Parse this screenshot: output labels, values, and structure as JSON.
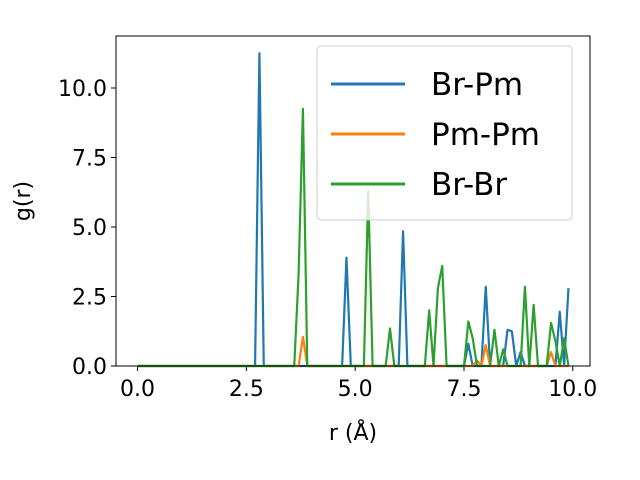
{
  "chart_data": {
    "type": "line",
    "x_label": "r (Å)",
    "y_label": "g(r)",
    "x": [
      0,
      0.1,
      0.2,
      0.3,
      0.4,
      0.5,
      0.6,
      0.7,
      0.8,
      0.9,
      1,
      1.1,
      1.2,
      1.3,
      1.4,
      1.5,
      1.6,
      1.7,
      1.8,
      1.9,
      2,
      2.1,
      2.2,
      2.3,
      2.4,
      2.5,
      2.6,
      2.7,
      2.8,
      2.9,
      3,
      3.1,
      3.2,
      3.3,
      3.4,
      3.5,
      3.6,
      3.7,
      3.8,
      3.9,
      4,
      4.1,
      4.2,
      4.3,
      4.4,
      4.5,
      4.6,
      4.7,
      4.8,
      4.9,
      5,
      5.1,
      5.2,
      5.3,
      5.4,
      5.5,
      5.6,
      5.7,
      5.8,
      5.9,
      6,
      6.1,
      6.2,
      6.3,
      6.4,
      6.5,
      6.6,
      6.7,
      6.8,
      6.9,
      7,
      7.1,
      7.2,
      7.3,
      7.4,
      7.5,
      7.6,
      7.7,
      7.8,
      7.9,
      8,
      8.1,
      8.2,
      8.3,
      8.4,
      8.5,
      8.6,
      8.7,
      8.8,
      8.9,
      9,
      9.1,
      9.2,
      9.3,
      9.4,
      9.5,
      9.6,
      9.7,
      9.8,
      9.9
    ],
    "series": [
      {
        "name": "Br-Pm",
        "color": "#1f77b4",
        "values": [
          0,
          0,
          0,
          0,
          0,
          0,
          0,
          0,
          0,
          0,
          0,
          0,
          0,
          0,
          0,
          0,
          0,
          0,
          0,
          0,
          0,
          0,
          0,
          0,
          0,
          0,
          0,
          0,
          11.25,
          0,
          0,
          0,
          0,
          0,
          0,
          0,
          0,
          0,
          0,
          0,
          0,
          0,
          0,
          0,
          0,
          0,
          0,
          0,
          3.9,
          0,
          0,
          0,
          0,
          0,
          0,
          0,
          0,
          0,
          0,
          0,
          0,
          4.85,
          0,
          0,
          0,
          0,
          0,
          0,
          0,
          0,
          0,
          0,
          0,
          0,
          0,
          0,
          0.8,
          0,
          0,
          0,
          2.85,
          0,
          0,
          0,
          0,
          1.3,
          1.25,
          0,
          0.5,
          0,
          0,
          0,
          0,
          0,
          0,
          0,
          0,
          1.95,
          0,
          2.8
        ]
      },
      {
        "name": "Pm-Pm",
        "color": "#ff7f0e",
        "values": [
          0,
          0,
          0,
          0,
          0,
          0,
          0,
          0,
          0,
          0,
          0,
          0,
          0,
          0,
          0,
          0,
          0,
          0,
          0,
          0,
          0,
          0,
          0,
          0,
          0,
          0,
          0,
          0,
          0,
          0,
          0,
          0,
          0,
          0,
          0,
          0,
          0,
          0,
          1.05,
          0,
          0,
          0,
          0,
          0,
          0,
          0,
          0,
          0,
          0,
          0,
          0,
          0,
          0,
          0,
          0,
          0,
          0,
          0,
          0,
          0,
          0,
          0,
          0,
          0,
          0,
          0,
          0,
          0,
          0,
          0,
          0,
          0,
          0,
          0,
          0,
          0,
          0,
          0,
          0.2,
          0,
          0.75,
          0,
          0,
          0,
          0,
          0,
          0,
          0,
          0,
          0,
          0,
          0,
          0,
          0,
          0,
          0.5,
          0,
          0,
          0,
          0
        ]
      },
      {
        "name": "Br-Br",
        "color": "#2ca02c",
        "values": [
          0,
          0,
          0,
          0,
          0,
          0,
          0,
          0,
          0,
          0,
          0,
          0,
          0,
          0,
          0,
          0,
          0,
          0,
          0,
          0,
          0,
          0,
          0,
          0,
          0,
          0,
          0,
          0,
          0,
          0,
          0,
          0,
          0,
          0,
          0,
          0,
          0,
          3.3,
          9.25,
          0,
          0,
          0,
          0,
          0,
          0,
          0,
          0,
          0,
          0,
          0,
          0,
          0,
          0,
          6.3,
          0,
          0,
          0,
          0,
          1.35,
          0,
          0,
          0,
          0,
          0,
          0,
          0,
          0,
          2,
          0,
          2.8,
          3.6,
          0,
          0,
          0,
          0,
          0,
          1.6,
          1,
          0,
          0,
          0,
          0,
          1.3,
          0,
          0.6,
          0,
          0,
          0,
          0,
          2.85,
          0,
          2.2,
          0,
          0,
          0,
          1.55,
          0.9,
          0,
          1,
          0
        ]
      }
    ],
    "xlim": [
      -0.495,
      10.395
    ],
    "ylim": [
      0,
      11.87
    ],
    "xticks": [
      {
        "value": 0,
        "label": "0.0"
      },
      {
        "value": 2.5,
        "label": "2.5"
      },
      {
        "value": 5,
        "label": "5.0"
      },
      {
        "value": 7.5,
        "label": "7.5"
      },
      {
        "value": 10,
        "label": "10.0"
      }
    ],
    "yticks": [
      {
        "value": 0,
        "label": "0.0"
      },
      {
        "value": 2.5,
        "label": "2.5"
      },
      {
        "value": 5,
        "label": "5.0"
      },
      {
        "value": 7.5,
        "label": "7.5"
      },
      {
        "value": 10,
        "label": "10.0"
      }
    ],
    "legend": "upper right"
  }
}
